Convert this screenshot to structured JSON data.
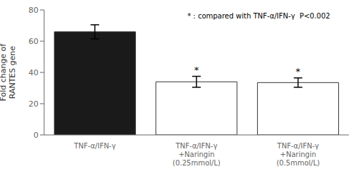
{
  "chart_data": {
    "type": "bar",
    "categories": [
      "TNF-α/IFN-γ",
      "TNF-α/IFN-γ\n+Naringin\n(0.25mmol/L)",
      "TNF-α/IFN-γ\n+Naringin\n(0.5mmol/L)"
    ],
    "values": [
      66.0,
      34.0,
      33.5
    ],
    "errors": [
      4.5,
      3.5,
      3.0
    ],
    "colors": [
      "#1a1a1a",
      "#ffffff",
      "#ffffff"
    ],
    "significance": [
      null,
      "*",
      "*"
    ],
    "ylabel": "Fold change of\nRANTES gene",
    "ylim": [
      0,
      80
    ],
    "yticks": [
      0,
      20,
      40,
      60,
      80
    ],
    "annotation": "* : compared with TNF-α/IFN-γ  P<0.002",
    "grid": false
  }
}
